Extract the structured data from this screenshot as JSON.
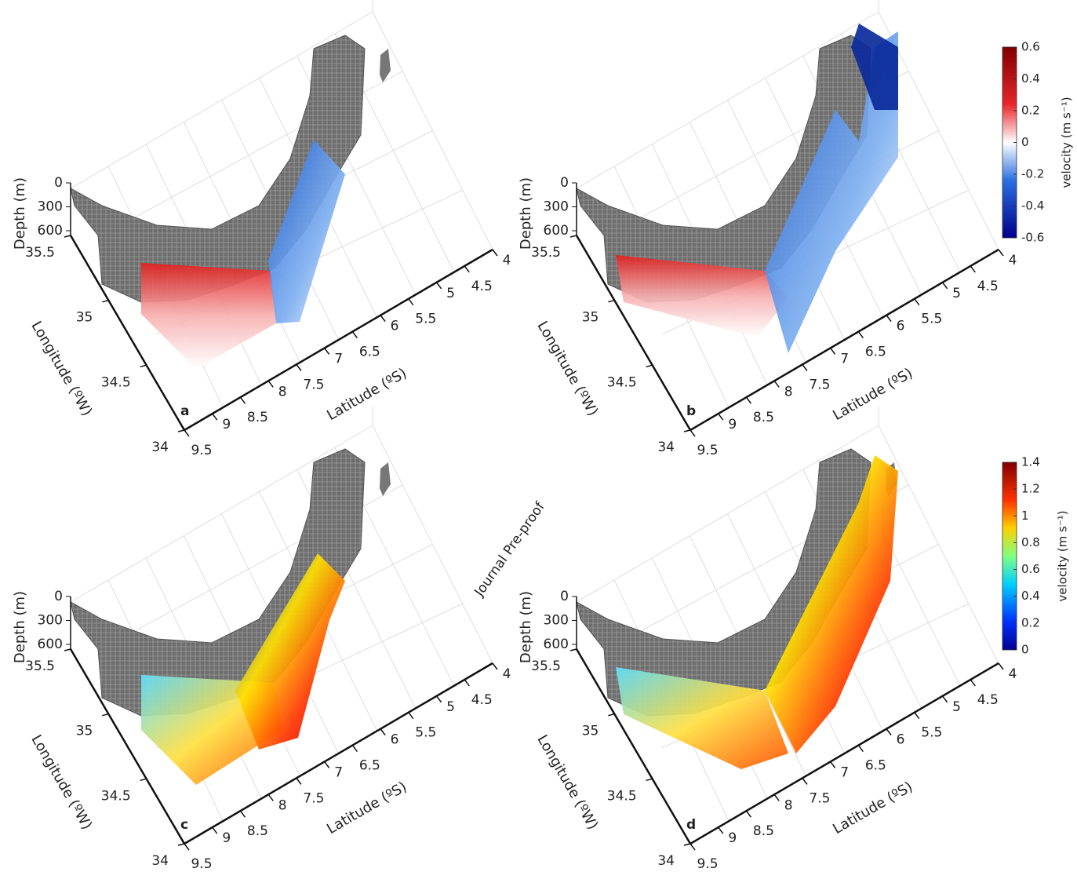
{
  "panels": [
    {
      "label": "a",
      "depth_title": "Depth (m)",
      "depth_ticks": [
        0,
        300,
        600
      ],
      "longitude_title": "Longitude (ºW)",
      "longitude_ticks": [
        35.5,
        35,
        34.5,
        34
      ],
      "latitude_title": "Latitude (ºS)",
      "latitude_ticks": [
        9.5,
        9,
        8.5,
        8,
        7.5,
        7,
        6.5,
        6,
        5.5,
        5,
        4.5,
        4
      ]
    },
    {
      "label": "b",
      "depth_title": "Depth (m)",
      "depth_ticks": [
        0,
        300,
        600
      ],
      "longitude_title": "Longitude (ºW)",
      "longitude_ticks": [
        35.5,
        35,
        34.5,
        34
      ],
      "latitude_title": "Latitude (ºS)",
      "latitude_ticks": [
        9.5,
        9,
        8.5,
        8,
        7.5,
        7,
        6.5,
        6,
        5.5,
        5,
        4.5,
        4
      ]
    },
    {
      "label": "c",
      "depth_title": "Depth (m)",
      "depth_ticks": [
        0,
        300,
        600
      ],
      "longitude_title": "Longitude (ºW)",
      "longitude_ticks": [
        35.5,
        35,
        34.5,
        34
      ],
      "latitude_title": "Latitude (ºS)",
      "latitude_ticks": [
        9.5,
        9,
        8.5,
        8,
        7.5,
        7,
        6.5,
        6,
        5.5,
        5,
        4.5,
        4
      ]
    },
    {
      "label": "d",
      "depth_title": "Depth (m)",
      "depth_ticks": [
        0,
        300,
        600
      ],
      "longitude_title": "Longitude (ºW)",
      "longitude_ticks": [
        35.5,
        35,
        34.5,
        34
      ],
      "latitude_title": "Latitude (ºS)",
      "latitude_ticks": [
        9.5,
        9,
        8.5,
        8,
        7.5,
        7,
        6.5,
        6,
        5.5,
        5,
        4.5,
        4
      ]
    }
  ],
  "colorbars": [
    {
      "title": "velocity (m s⁻¹)",
      "ticks": [
        0.6,
        0.4,
        0.2,
        0,
        -0.2,
        -0.4,
        -0.6
      ]
    },
    {
      "title": "velocity (m s⁻¹)",
      "ticks": [
        1.4,
        1.2,
        1,
        0.8,
        0.6,
        0.4,
        0.2,
        0
      ]
    }
  ],
  "watermark": "Journal Pre-proof"
}
